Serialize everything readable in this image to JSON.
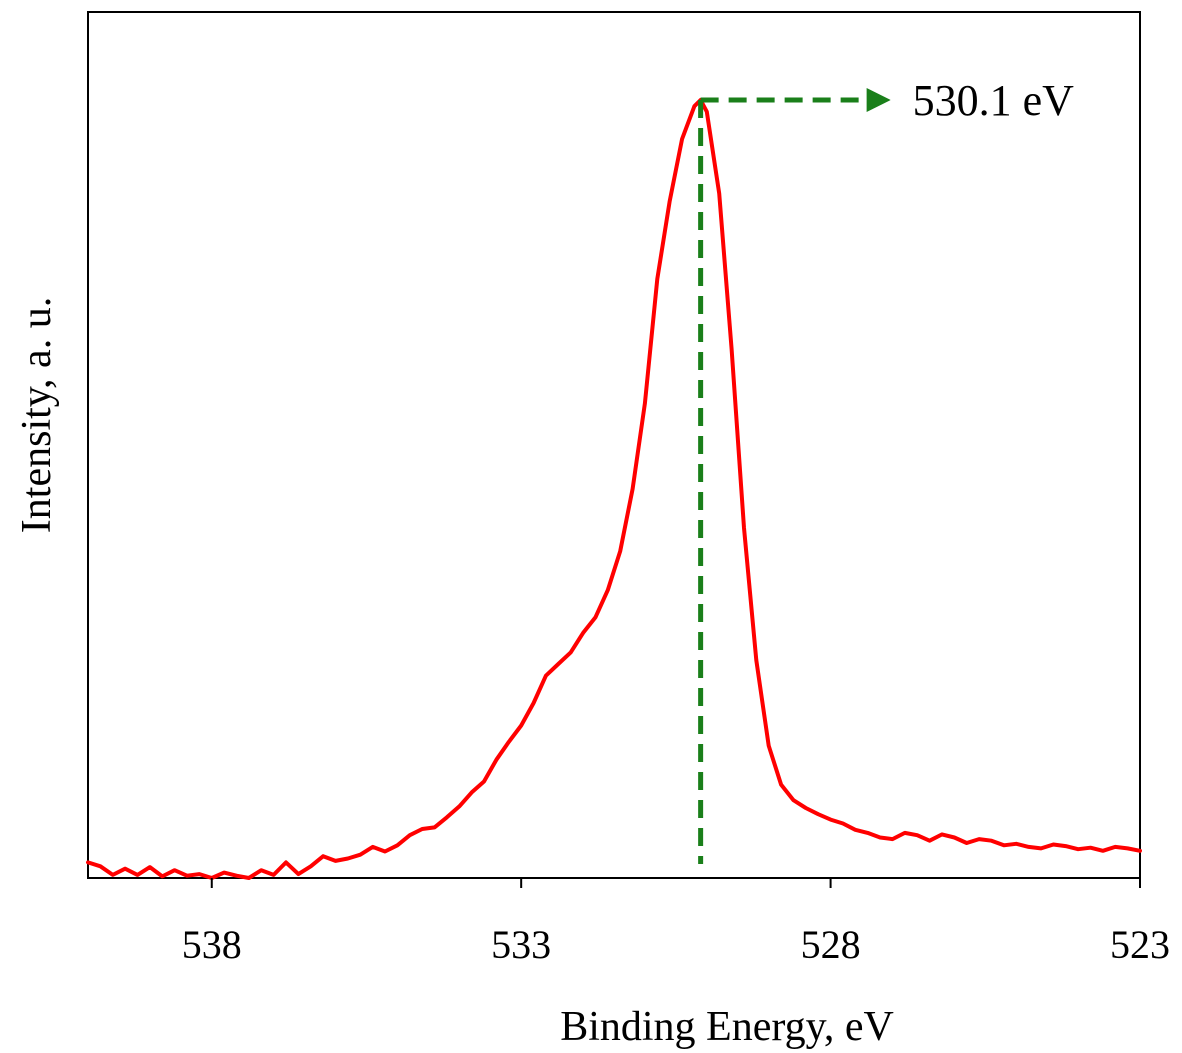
{
  "chart_data": {
    "type": "line",
    "title": "",
    "xlabel": "Binding Energy,  eV",
    "ylabel": "Intensity, a. u.",
    "xlim": [
      540,
      523
    ],
    "x_reversed": true,
    "ylim": [
      0,
      1.0
    ],
    "xticks": [
      538,
      533,
      528,
      523
    ],
    "xtick_labels": [
      "538",
      "533",
      "528",
      "523"
    ],
    "grid": false,
    "legend": "none",
    "colors": {
      "series": "#ff0000",
      "annotation": "#1a7f1a",
      "axis": "#000000"
    },
    "series": [
      {
        "x": [
          540.0,
          539.8,
          539.6,
          539.4,
          539.2,
          539.0,
          538.8,
          538.6,
          538.4,
          538.2,
          538.0,
          537.8,
          537.6,
          537.4,
          537.2,
          537.0,
          536.8,
          536.6,
          536.4,
          536.2,
          536.0,
          535.8,
          535.6,
          535.4,
          535.2,
          535.0,
          534.8,
          534.6,
          534.4,
          534.2,
          534.0,
          533.8,
          533.6,
          533.4,
          533.2,
          533.0,
          532.8,
          532.6,
          532.4,
          532.2,
          532.0,
          531.8,
          531.6,
          531.4,
          531.2,
          531.0,
          530.8,
          530.6,
          530.4,
          530.2,
          530.1,
          530.0,
          529.8,
          529.6,
          529.4,
          529.2,
          529.0,
          528.8,
          528.6,
          528.4,
          528.2,
          528.0,
          527.8,
          527.6,
          527.4,
          527.2,
          527.0,
          526.8,
          526.6,
          526.4,
          526.2,
          526.0,
          525.8,
          525.6,
          525.4,
          525.2,
          525.0,
          524.8,
          524.6,
          524.4,
          524.2,
          524.0,
          523.8,
          523.6,
          523.4,
          523.2,
          523.0
        ],
        "y": [
          0.02,
          0.015,
          0.004,
          0.012,
          0.004,
          0.014,
          0.002,
          0.01,
          0.003,
          0.005,
          0.0,
          0.007,
          0.003,
          0.0,
          0.01,
          0.004,
          0.02,
          0.005,
          0.015,
          0.028,
          0.022,
          0.025,
          0.03,
          0.04,
          0.034,
          0.042,
          0.055,
          0.063,
          0.065,
          0.078,
          0.092,
          0.11,
          0.124,
          0.152,
          0.175,
          0.196,
          0.225,
          0.26,
          0.275,
          0.29,
          0.315,
          0.335,
          0.37,
          0.42,
          0.5,
          0.61,
          0.77,
          0.87,
          0.95,
          0.992,
          1.0,
          0.985,
          0.88,
          0.68,
          0.45,
          0.28,
          0.17,
          0.12,
          0.1,
          0.09,
          0.082,
          0.075,
          0.07,
          0.062,
          0.058,
          0.052,
          0.05,
          0.058,
          0.055,
          0.048,
          0.056,
          0.052,
          0.045,
          0.05,
          0.048,
          0.042,
          0.044,
          0.04,
          0.038,
          0.043,
          0.041,
          0.037,
          0.039,
          0.035,
          0.04,
          0.038,
          0.035
        ]
      }
    ],
    "annotations": [
      {
        "text": "530.1 eV",
        "x": 530.1,
        "y": 1.0
      }
    ]
  }
}
